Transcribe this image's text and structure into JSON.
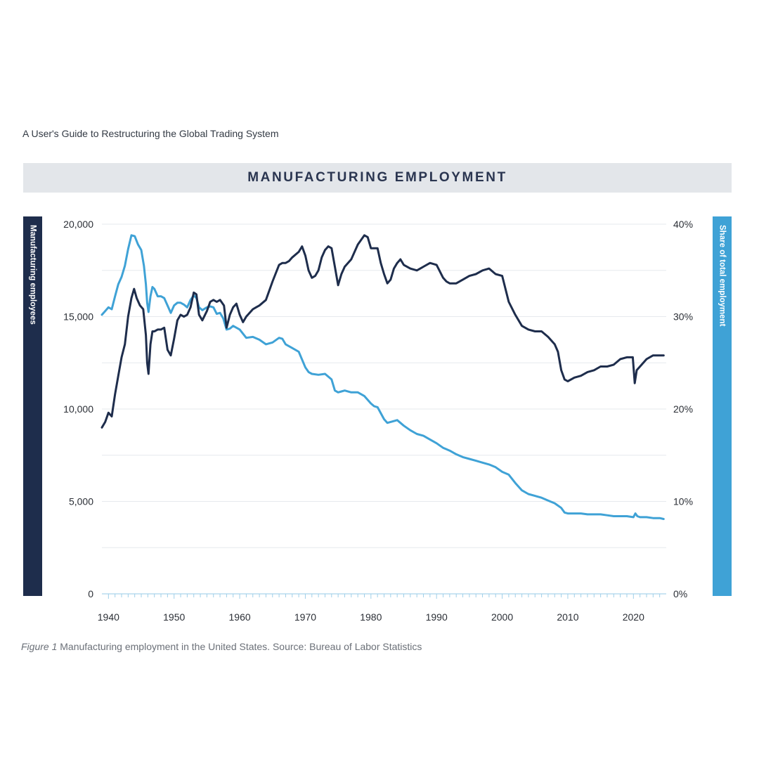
{
  "document": {
    "header": "A User's Guide to Restructuring the Global Trading System"
  },
  "chart_data": {
    "type": "line",
    "title": "MANUFACTURING EMPLOYMENT",
    "ylabel_left": "Manufacturing employees",
    "ylabel_right": "Share of total employment",
    "xlim": [
      1939,
      2025
    ],
    "ylim_left": [
      0,
      20000
    ],
    "ylim_right": [
      0,
      40
    ],
    "x_ticks": [
      "1940",
      "1950",
      "1960",
      "1970",
      "1980",
      "1990",
      "2000",
      "2010",
      "2020"
    ],
    "y_ticks_left": [
      "0",
      "5,000",
      "10,000",
      "15,000",
      "20,000"
    ],
    "y_ticks_right": [
      "0%",
      "10%",
      "20%",
      "30%",
      "40%"
    ],
    "grid": true,
    "series": [
      {
        "name": "Manufacturing employees",
        "axis": "left",
        "color": "#1e2d4c",
        "x": [
          1939.0,
          1939.5,
          1940.0,
          1940.5,
          1941.0,
          1941.5,
          1942.0,
          1942.5,
          1943.0,
          1943.5,
          1943.9,
          1944.3,
          1944.8,
          1945.3,
          1945.7,
          1945.9,
          1946.1,
          1946.4,
          1946.7,
          1947.0,
          1947.5,
          1948.0,
          1948.5,
          1949.0,
          1949.5,
          1950.0,
          1950.5,
          1951.0,
          1951.5,
          1952.0,
          1952.5,
          1953.0,
          1953.4,
          1953.8,
          1954.3,
          1955.0,
          1955.5,
          1956.0,
          1956.5,
          1957.0,
          1957.6,
          1958.0,
          1958.5,
          1959.0,
          1959.5,
          1960.0,
          1960.5,
          1961.0,
          1961.5,
          1962.0,
          1962.5,
          1963.0,
          1964.0,
          1965.0,
          1966.0,
          1966.5,
          1967.0,
          1967.5,
          1968.0,
          1969.0,
          1969.5,
          1970.0,
          1970.5,
          1971.0,
          1971.5,
          1972.0,
          1972.5,
          1973.0,
          1973.5,
          1974.0,
          1974.5,
          1975.0,
          1975.5,
          1976.0,
          1977.0,
          1978.0,
          1979.0,
          1979.5,
          1980.0,
          1980.5,
          1981.0,
          1981.5,
          1982.0,
          1982.5,
          1983.0,
          1983.5,
          1984.0,
          1984.5,
          1985.0,
          1986.0,
          1987.0,
          1988.0,
          1989.0,
          1990.0,
          1991.0,
          1991.5,
          1992.0,
          1993.0,
          1994.0,
          1995.0,
          1996.0,
          1997.0,
          1998.0,
          1999.0,
          2000.0,
          2001.0,
          2002.0,
          2003.0,
          2004.0,
          2005.0,
          2006.0,
          2007.0,
          2008.0,
          2008.5,
          2009.0,
          2009.5,
          2010.0,
          2011.0,
          2012.0,
          2013.0,
          2014.0,
          2015.0,
          2016.0,
          2017.0,
          2018.0,
          2019.0,
          2019.9,
          2020.2,
          2020.5,
          2021.0,
          2022.0,
          2023.0,
          2024.0,
          2024.6
        ],
        "values": [
          9000,
          9300,
          9800,
          9600,
          10800,
          11800,
          12800,
          13500,
          15000,
          16000,
          16500,
          16000,
          15600,
          15400,
          14000,
          12500,
          11900,
          13500,
          14200,
          14200,
          14300,
          14300,
          14400,
          13200,
          12900,
          13800,
          14800,
          15100,
          15000,
          15100,
          15500,
          16300,
          16200,
          15100,
          14800,
          15300,
          15800,
          15900,
          15800,
          15900,
          15600,
          14400,
          15100,
          15500,
          15700,
          15100,
          14700,
          15000,
          15200,
          15400,
          15500,
          15600,
          15900,
          16900,
          17800,
          17900,
          17900,
          18000,
          18200,
          18500,
          18800,
          18300,
          17500,
          17100,
          17200,
          17500,
          18200,
          18600,
          18800,
          18700,
          17700,
          16700,
          17300,
          17700,
          18100,
          18900,
          19400,
          19300,
          18700,
          18700,
          18700,
          17900,
          17300,
          16800,
          17000,
          17600,
          17900,
          18100,
          17800,
          17600,
          17500,
          17700,
          17900,
          17800,
          17100,
          16900,
          16800,
          16800,
          17000,
          17200,
          17300,
          17500,
          17600,
          17300,
          17200,
          15800,
          15100,
          14500,
          14300,
          14200,
          14200,
          13900,
          13500,
          13100,
          12100,
          11600,
          11500,
          11700,
          11800,
          12000,
          12100,
          12300,
          12300,
          12400,
          12700,
          12800,
          12800,
          11400,
          12100,
          12300,
          12700,
          12900,
          12900,
          12900
        ]
      },
      {
        "name": "Share of total employment",
        "axis": "right",
        "color": "#3fa2d6",
        "x": [
          1939.0,
          1939.5,
          1940.0,
          1940.5,
          1941.0,
          1941.5,
          1942.0,
          1942.5,
          1943.0,
          1943.5,
          1944.0,
          1944.5,
          1945.0,
          1945.4,
          1945.7,
          1945.9,
          1946.1,
          1946.4,
          1946.7,
          1947.0,
          1947.5,
          1948.0,
          1948.5,
          1949.0,
          1949.5,
          1950.0,
          1950.5,
          1951.0,
          1951.5,
          1952.0,
          1952.5,
          1953.0,
          1953.4,
          1953.8,
          1954.3,
          1955.0,
          1955.5,
          1956.0,
          1956.5,
          1957.0,
          1957.5,
          1958.0,
          1958.5,
          1959.0,
          1959.5,
          1960.0,
          1961.0,
          1962.0,
          1963.0,
          1964.0,
          1965.0,
          1966.0,
          1966.5,
          1967.0,
          1968.0,
          1969.0,
          1970.0,
          1970.5,
          1971.0,
          1972.0,
          1973.0,
          1974.0,
          1974.5,
          1975.0,
          1975.5,
          1976.0,
          1977.0,
          1978.0,
          1979.0,
          1980.0,
          1980.5,
          1981.0,
          1982.0,
          1982.5,
          1983.0,
          1984.0,
          1985.0,
          1986.0,
          1987.0,
          1988.0,
          1989.0,
          1990.0,
          1991.0,
          1992.0,
          1993.0,
          1994.0,
          1995.0,
          1996.0,
          1997.0,
          1998.0,
          1999.0,
          2000.0,
          2001.0,
          2002.0,
          2003.0,
          2004.0,
          2005.0,
          2006.0,
          2007.0,
          2008.0,
          2009.0,
          2009.5,
          2010.0,
          2011.0,
          2012.0,
          2013.0,
          2014.0,
          2015.0,
          2016.0,
          2017.0,
          2018.0,
          2019.0,
          2020.0,
          2020.3,
          2020.6,
          2021.0,
          2022.0,
          2023.0,
          2024.0,
          2024.6
        ],
        "values": [
          30.2,
          30.6,
          31.0,
          30.8,
          32.2,
          33.5,
          34.3,
          35.5,
          37.3,
          38.8,
          38.7,
          37.8,
          37.2,
          35.5,
          33.5,
          31.5,
          30.5,
          32.2,
          33.2,
          33.0,
          32.2,
          32.2,
          32.0,
          31.2,
          30.4,
          31.2,
          31.5,
          31.5,
          31.3,
          31.0,
          31.8,
          32.3,
          32.0,
          31.0,
          30.7,
          31.0,
          31.1,
          31.0,
          30.3,
          30.4,
          29.8,
          28.6,
          28.7,
          29.0,
          28.8,
          28.6,
          27.7,
          27.8,
          27.5,
          27.0,
          27.2,
          27.7,
          27.6,
          27.0,
          26.6,
          26.2,
          24.5,
          24.0,
          23.8,
          23.7,
          23.8,
          23.2,
          22.0,
          21.8,
          21.9,
          22.0,
          21.8,
          21.8,
          21.4,
          20.6,
          20.3,
          20.2,
          18.9,
          18.5,
          18.6,
          18.8,
          18.2,
          17.7,
          17.3,
          17.1,
          16.7,
          16.3,
          15.8,
          15.5,
          15.1,
          14.8,
          14.6,
          14.4,
          14.2,
          14.0,
          13.7,
          13.2,
          12.9,
          12.0,
          11.2,
          10.8,
          10.6,
          10.4,
          10.1,
          9.8,
          9.3,
          8.8,
          8.7,
          8.7,
          8.7,
          8.6,
          8.6,
          8.6,
          8.5,
          8.4,
          8.4,
          8.4,
          8.3,
          8.7,
          8.4,
          8.3,
          8.3,
          8.2,
          8.2,
          8.1
        ]
      }
    ]
  },
  "caption": {
    "label": "Figure 1",
    "text": " Manufacturing employment in the United States. Source: Bureau of Labor Statistics"
  },
  "colors": {
    "employees": "#1e2d4c",
    "share": "#3fa2d6",
    "banner_bg": "#e3e6ea",
    "grid": "#e6e9ee"
  }
}
